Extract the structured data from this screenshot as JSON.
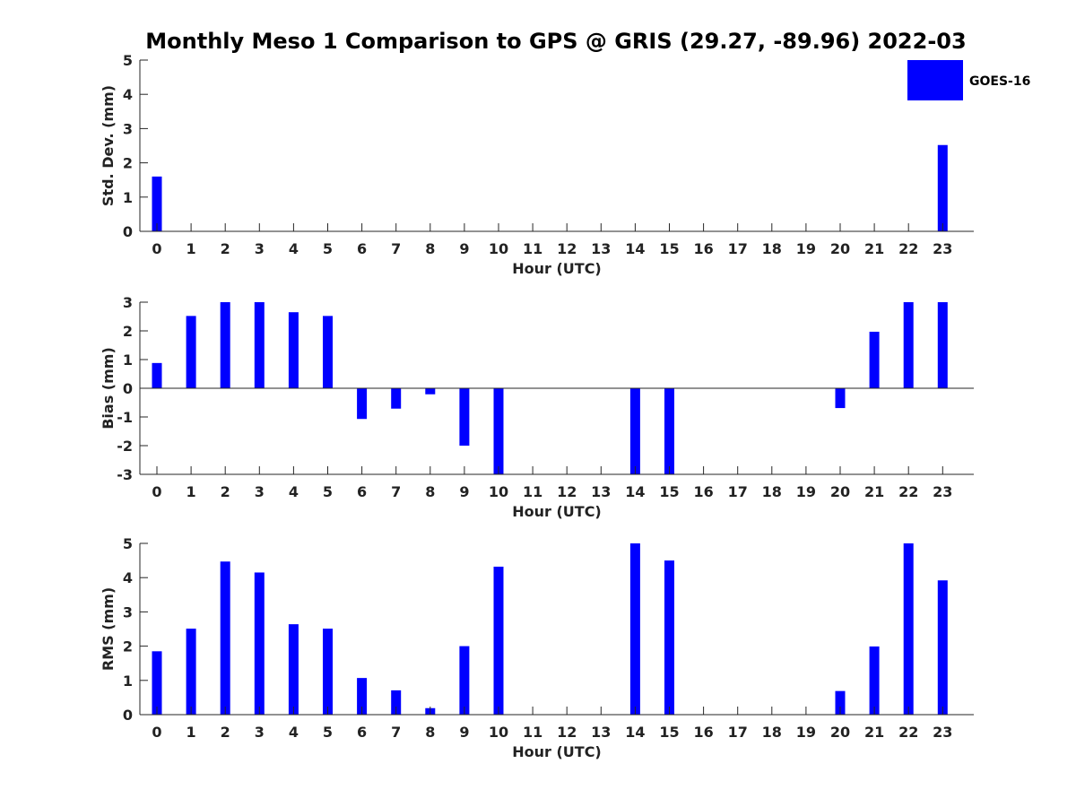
{
  "figure": {
    "title": "Monthly Meso 1 Comparison to GPS @ GRIS (29.27, -89.96) 2022-03",
    "bar_color": "#0000ff",
    "axis_color": "#262626"
  },
  "legend": {
    "label": "GOES-16",
    "placement": "top-right"
  },
  "chart_data": [
    {
      "type": "bar",
      "title": "",
      "xlabel": "Hour (UTC)",
      "ylabel": "Std. Dev. (mm)",
      "categories": [
        "0",
        "1",
        "2",
        "3",
        "4",
        "5",
        "6",
        "7",
        "8",
        "9",
        "10",
        "11",
        "12",
        "13",
        "14",
        "15",
        "16",
        "17",
        "18",
        "19",
        "20",
        "21",
        "22",
        "23"
      ],
      "ylim": [
        0,
        5
      ],
      "yticks": [
        "0",
        "1",
        "2",
        "3",
        "4",
        "5"
      ],
      "zero_line": false,
      "series": [
        {
          "name": "GOES-16",
          "values": [
            1.6,
            null,
            null,
            null,
            null,
            null,
            null,
            null,
            null,
            null,
            null,
            null,
            null,
            null,
            null,
            null,
            null,
            null,
            null,
            null,
            null,
            null,
            null,
            2.52
          ]
        }
      ]
    },
    {
      "type": "bar",
      "title": "",
      "xlabel": "Hour (UTC)",
      "ylabel": "Bias (mm)",
      "categories": [
        "0",
        "1",
        "2",
        "3",
        "4",
        "5",
        "6",
        "7",
        "8",
        "9",
        "10",
        "11",
        "12",
        "13",
        "14",
        "15",
        "16",
        "17",
        "18",
        "19",
        "20",
        "21",
        "22",
        "23"
      ],
      "ylim": [
        -3,
        3
      ],
      "yticks": [
        "-3",
        "-2",
        "-1",
        "0",
        "1",
        "2",
        "3"
      ],
      "zero_line": true,
      "series": [
        {
          "name": "GOES-16",
          "values": [
            0.88,
            2.52,
            3.0,
            3.0,
            2.65,
            2.52,
            -1.07,
            -0.71,
            -0.21,
            -2.0,
            -3.0,
            null,
            null,
            null,
            -3.0,
            -3.0,
            null,
            null,
            null,
            null,
            -0.69,
            1.97,
            3.0,
            3.0
          ]
        }
      ]
    },
    {
      "type": "bar",
      "title": "",
      "xlabel": "Hour (UTC)",
      "ylabel": "RMS (mm)",
      "categories": [
        "0",
        "1",
        "2",
        "3",
        "4",
        "5",
        "6",
        "7",
        "8",
        "9",
        "10",
        "11",
        "12",
        "13",
        "14",
        "15",
        "16",
        "17",
        "18",
        "19",
        "20",
        "21",
        "22",
        "23"
      ],
      "ylim": [
        0,
        5
      ],
      "yticks": [
        "0",
        "1",
        "2",
        "3",
        "4",
        "5"
      ],
      "zero_line": false,
      "series": [
        {
          "name": "GOES-16",
          "values": [
            1.85,
            2.51,
            4.47,
            4.15,
            2.64,
            2.51,
            1.07,
            0.71,
            0.19,
            2.0,
            4.32,
            null,
            null,
            null,
            5.0,
            4.5,
            null,
            null,
            null,
            null,
            0.69,
            1.99,
            5.0,
            3.92
          ]
        }
      ]
    }
  ]
}
